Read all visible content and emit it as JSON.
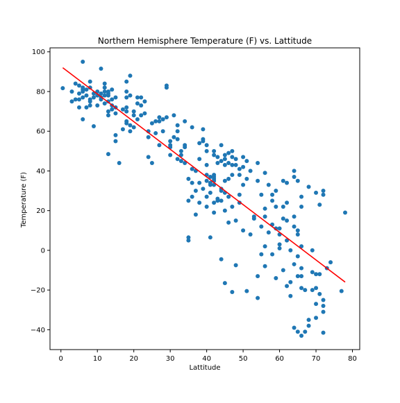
{
  "chart_data": {
    "type": "scatter",
    "title": "Northern Hemisphere Temperature (F) vs. Lattitude",
    "xlabel": "Lattitude",
    "ylabel": "Temperature (F)",
    "xlim": [
      -3,
      82
    ],
    "ylim": [
      -50,
      102
    ],
    "xticks": [
      0,
      10,
      20,
      30,
      40,
      50,
      60,
      70,
      80
    ],
    "yticks": [
      -40,
      -20,
      0,
      20,
      40,
      60,
      80,
      100
    ],
    "grid": false,
    "legend": "none",
    "colors": {
      "points": "#1f77b4",
      "regression": "#ff0000",
      "axes": "#000000",
      "background": "#ffffff"
    },
    "regression": {
      "x": [
        0.5,
        78
      ],
      "y": [
        92,
        -16
      ]
    },
    "points": [
      [
        0.5,
        81.7
      ],
      [
        3,
        75
      ],
      [
        3,
        80
      ],
      [
        4,
        76
      ],
      [
        4,
        84
      ],
      [
        5,
        76
      ],
      [
        5,
        79
      ],
      [
        5,
        83
      ],
      [
        5,
        72
      ],
      [
        6,
        77
      ],
      [
        6,
        80
      ],
      [
        6,
        81
      ],
      [
        6,
        82
      ],
      [
        6,
        95
      ],
      [
        6,
        66
      ],
      [
        7,
        72
      ],
      [
        7,
        78
      ],
      [
        7,
        81
      ],
      [
        8,
        82
      ],
      [
        8,
        85
      ],
      [
        8,
        73
      ],
      [
        8,
        75
      ],
      [
        8,
        76
      ],
      [
        9,
        62.5
      ],
      [
        9,
        77
      ],
      [
        9,
        79
      ],
      [
        10,
        80
      ],
      [
        10,
        73
      ],
      [
        10,
        78
      ],
      [
        11,
        91.5
      ],
      [
        11,
        76
      ],
      [
        11,
        77
      ],
      [
        11,
        79
      ],
      [
        12,
        80
      ],
      [
        12,
        84
      ],
      [
        12,
        74
      ],
      [
        12,
        78
      ],
      [
        12,
        82
      ],
      [
        13,
        70
      ],
      [
        13,
        78
      ],
      [
        13,
        79
      ],
      [
        13,
        80
      ],
      [
        13,
        68
      ],
      [
        13,
        75
      ],
      [
        13,
        48.5
      ],
      [
        14,
        81
      ],
      [
        14,
        71
      ],
      [
        14,
        73
      ],
      [
        14,
        76
      ],
      [
        15,
        77
      ],
      [
        15,
        72
      ],
      [
        15,
        69
      ],
      [
        15,
        55
      ],
      [
        15,
        58
      ],
      [
        16,
        44
      ],
      [
        17,
        71
      ],
      [
        17,
        61
      ],
      [
        18,
        85
      ],
      [
        18,
        80
      ],
      [
        18,
        77
      ],
      [
        18,
        72
      ],
      [
        18,
        70
      ],
      [
        18,
        65
      ],
      [
        18,
        64
      ],
      [
        19,
        88
      ],
      [
        19,
        63
      ],
      [
        19,
        60
      ],
      [
        19,
        78
      ],
      [
        20,
        70
      ],
      [
        20,
        68
      ],
      [
        20,
        62
      ],
      [
        21,
        77
      ],
      [
        21,
        74
      ],
      [
        21,
        66
      ],
      [
        22,
        77
      ],
      [
        22,
        73
      ],
      [
        22,
        68
      ],
      [
        23,
        75
      ],
      [
        23,
        69
      ],
      [
        24,
        47
      ],
      [
        24,
        57
      ],
      [
        24,
        60
      ],
      [
        25,
        44
      ],
      [
        25,
        64
      ],
      [
        26,
        65
      ],
      [
        26,
        59
      ],
      [
        27,
        67
      ],
      [
        27,
        65
      ],
      [
        27,
        53
      ],
      [
        28,
        66
      ],
      [
        28,
        60
      ],
      [
        29,
        82
      ],
      [
        29,
        83
      ],
      [
        29,
        67
      ],
      [
        30,
        55
      ],
      [
        30,
        53
      ],
      [
        30,
        52
      ],
      [
        30,
        48
      ],
      [
        31,
        68
      ],
      [
        31,
        57
      ],
      [
        32,
        46
      ],
      [
        32,
        60
      ],
      [
        32,
        63
      ],
      [
        32,
        56
      ],
      [
        33,
        50
      ],
      [
        33,
        48
      ],
      [
        33,
        45
      ],
      [
        34,
        44
      ],
      [
        34,
        65
      ],
      [
        34,
        53
      ],
      [
        34,
        52
      ],
      [
        35,
        25
      ],
      [
        35,
        36
      ],
      [
        35,
        6.5
      ],
      [
        35,
        5
      ],
      [
        36,
        41
      ],
      [
        36,
        62
      ],
      [
        36,
        34
      ],
      [
        36,
        27
      ],
      [
        37,
        40
      ],
      [
        37,
        30
      ],
      [
        37,
        18
      ],
      [
        38,
        34
      ],
      [
        38,
        24
      ],
      [
        38,
        46
      ],
      [
        38,
        54
      ],
      [
        39,
        61
      ],
      [
        39,
        56
      ],
      [
        39,
        55
      ],
      [
        39,
        31
      ],
      [
        40,
        50
      ],
      [
        40,
        53
      ],
      [
        40,
        38
      ],
      [
        40,
        43
      ],
      [
        40,
        35
      ],
      [
        40,
        22
      ],
      [
        40,
        27
      ],
      [
        41,
        37
      ],
      [
        41,
        34
      ],
      [
        41,
        33
      ],
      [
        41,
        29
      ],
      [
        41,
        6.5
      ],
      [
        42,
        50
      ],
      [
        42,
        48
      ],
      [
        42,
        38
      ],
      [
        42,
        37
      ],
      [
        42,
        36
      ],
      [
        42,
        35
      ],
      [
        42,
        33
      ],
      [
        42,
        19
      ],
      [
        42,
        24
      ],
      [
        43,
        47
      ],
      [
        43,
        44
      ],
      [
        43,
        26
      ],
      [
        43,
        25
      ],
      [
        44,
        53
      ],
      [
        44,
        45
      ],
      [
        44,
        31
      ],
      [
        44,
        30
      ],
      [
        44,
        25
      ],
      [
        44,
        -4.5
      ],
      [
        45,
        48
      ],
      [
        45,
        46
      ],
      [
        45,
        43
      ],
      [
        45,
        35
      ],
      [
        45,
        29
      ],
      [
        45,
        20
      ],
      [
        45,
        -16.5
      ],
      [
        46,
        49
      ],
      [
        46,
        44
      ],
      [
        46,
        36
      ],
      [
        46,
        27
      ],
      [
        46,
        14
      ],
      [
        47,
        50
      ],
      [
        47,
        47
      ],
      [
        47,
        43
      ],
      [
        47,
        38
      ],
      [
        47,
        22
      ],
      [
        47,
        -21
      ],
      [
        48,
        46
      ],
      [
        48,
        43
      ],
      [
        48,
        15
      ],
      [
        48,
        -7.5
      ],
      [
        49,
        41
      ],
      [
        49,
        38
      ],
      [
        49,
        28
      ],
      [
        49,
        24
      ],
      [
        50,
        47
      ],
      [
        50,
        42
      ],
      [
        50,
        33
      ],
      [
        50,
        10
      ],
      [
        51,
        45
      ],
      [
        51,
        36
      ],
      [
        51,
        -20.5
      ],
      [
        52,
        40
      ],
      [
        52,
        8
      ],
      [
        53,
        17
      ],
      [
        53,
        16
      ],
      [
        54,
        35
      ],
      [
        54,
        44
      ],
      [
        54,
        -13
      ],
      [
        54,
        -24
      ],
      [
        55,
        28
      ],
      [
        55,
        12
      ],
      [
        55,
        -2
      ],
      [
        56,
        39
      ],
      [
        56,
        21
      ],
      [
        56,
        17
      ],
      [
        56,
        2
      ],
      [
        56,
        -8
      ],
      [
        57,
        33
      ],
      [
        57,
        9
      ],
      [
        58,
        28
      ],
      [
        58,
        25
      ],
      [
        58,
        13
      ],
      [
        58,
        -2
      ],
      [
        59,
        30
      ],
      [
        59,
        22
      ],
      [
        59,
        11
      ],
      [
        59,
        -14
      ],
      [
        60,
        11
      ],
      [
        60,
        8
      ],
      [
        60,
        3
      ],
      [
        60,
        1
      ],
      [
        61,
        35
      ],
      [
        61,
        22
      ],
      [
        61,
        16
      ],
      [
        61,
        -10
      ],
      [
        62,
        34
      ],
      [
        62,
        24
      ],
      [
        62,
        15
      ],
      [
        62,
        5
      ],
      [
        62,
        -18
      ],
      [
        63,
        0
      ],
      [
        63,
        -16
      ],
      [
        63,
        -23
      ],
      [
        64,
        40
      ],
      [
        64,
        37
      ],
      [
        64,
        17
      ],
      [
        64,
        12
      ],
      [
        64,
        -7
      ],
      [
        64,
        -39
      ],
      [
        65,
        35
      ],
      [
        65,
        10
      ],
      [
        65,
        8
      ],
      [
        65,
        -3
      ],
      [
        65,
        -13
      ],
      [
        65,
        -41
      ],
      [
        66,
        27
      ],
      [
        66,
        22
      ],
      [
        66,
        2
      ],
      [
        66,
        -9
      ],
      [
        66,
        -13
      ],
      [
        66,
        -19
      ],
      [
        66,
        -43
      ],
      [
        67,
        -20
      ],
      [
        67,
        -41
      ],
      [
        68,
        32
      ],
      [
        68,
        -38
      ],
      [
        68,
        -35
      ],
      [
        69,
        0
      ],
      [
        69,
        -11
      ],
      [
        69,
        -20
      ],
      [
        70,
        -12
      ],
      [
        70,
        -19
      ],
      [
        70,
        -27
      ],
      [
        70,
        -34
      ],
      [
        70,
        29
      ],
      [
        71,
        23
      ],
      [
        71,
        -12
      ],
      [
        71,
        -22
      ],
      [
        72,
        30
      ],
      [
        72,
        28
      ],
      [
        72,
        -25
      ],
      [
        72,
        -28
      ],
      [
        72,
        -31
      ],
      [
        72,
        -41.5
      ],
      [
        73,
        -9
      ],
      [
        74,
        -6
      ],
      [
        77,
        -20.5
      ],
      [
        78,
        19
      ]
    ]
  }
}
